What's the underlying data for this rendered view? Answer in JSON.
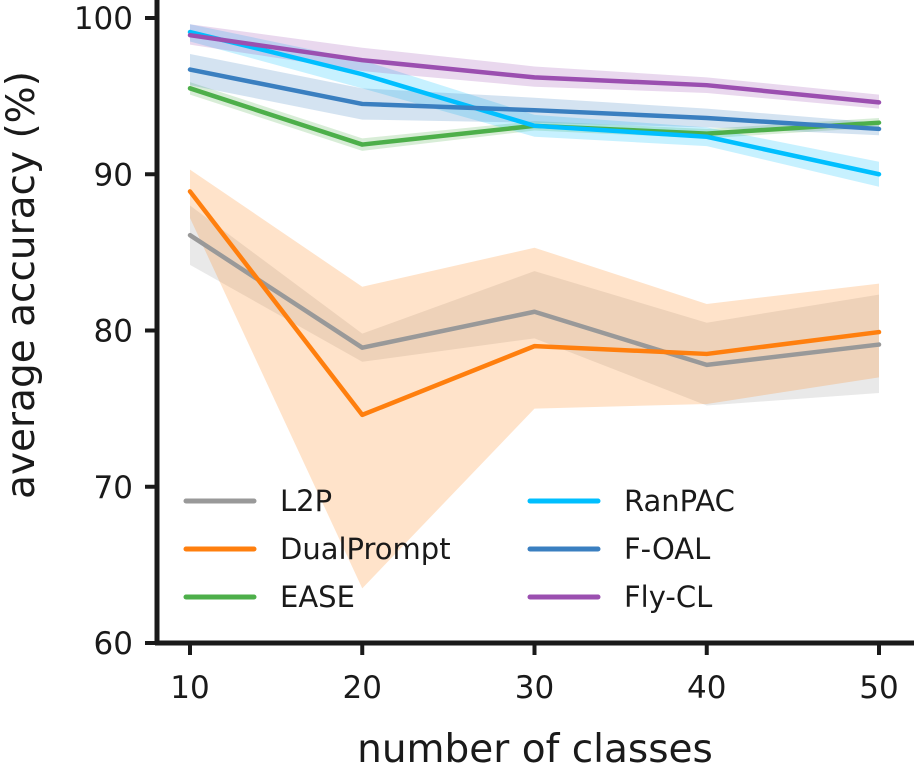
{
  "chart_data": {
    "type": "line",
    "title": "",
    "xlabel": "number of classes",
    "ylabel": "average accuracy (%)",
    "x": [
      10,
      20,
      30,
      40,
      50
    ],
    "xticks": [
      "10",
      "20",
      "30",
      "40",
      "50"
    ],
    "yticks": [
      "60",
      "70",
      "80",
      "90",
      "100"
    ],
    "xlim": [
      10,
      50
    ],
    "ylim": [
      60,
      100
    ],
    "grid": false,
    "legend_position": "lower-center",
    "series": [
      {
        "name": "L2P",
        "color": "#999999",
        "values": [
          86.1,
          78.9,
          81.2,
          77.8,
          79.1
        ],
        "lower": [
          84.2,
          78.0,
          79.5,
          75.2,
          76.0
        ],
        "upper": [
          88.0,
          79.8,
          83.8,
          80.5,
          82.3
        ]
      },
      {
        "name": "DualPrompt",
        "color": "#ff7f0e",
        "values": [
          88.9,
          74.6,
          79.0,
          78.5,
          79.9
        ],
        "lower": [
          87.2,
          63.5,
          75.0,
          75.3,
          77.0
        ],
        "upper": [
          90.3,
          82.8,
          85.3,
          81.7,
          83.0
        ]
      },
      {
        "name": "EASE",
        "color": "#4daf4a",
        "values": [
          95.5,
          91.9,
          93.1,
          92.6,
          93.3
        ],
        "lower": [
          95.1,
          91.5,
          92.8,
          92.3,
          93.0
        ],
        "upper": [
          95.9,
          92.3,
          93.4,
          92.9,
          93.6
        ]
      },
      {
        "name": "RanPAC",
        "color": "#00bfff",
        "values": [
          99.1,
          96.4,
          93.1,
          92.4,
          90.0
        ],
        "lower": [
          98.5,
          95.5,
          92.4,
          91.8,
          89.2
        ],
        "upper": [
          99.6,
          97.3,
          93.8,
          93.0,
          90.8
        ]
      },
      {
        "name": "F-OAL",
        "color": "#3a7fc0",
        "values": [
          96.7,
          94.5,
          94.1,
          93.6,
          92.9
        ],
        "lower": [
          95.7,
          93.5,
          93.3,
          93.0,
          92.5
        ],
        "upper": [
          97.7,
          95.5,
          94.9,
          94.2,
          93.3
        ]
      },
      {
        "name": "Fly-CL",
        "color": "#9b4fb0",
        "values": [
          98.9,
          97.3,
          96.2,
          95.7,
          94.6
        ],
        "lower": [
          98.3,
          96.6,
          95.6,
          95.2,
          94.2
        ],
        "upper": [
          99.6,
          98.1,
          96.9,
          96.2,
          95.1
        ]
      }
    ]
  }
}
